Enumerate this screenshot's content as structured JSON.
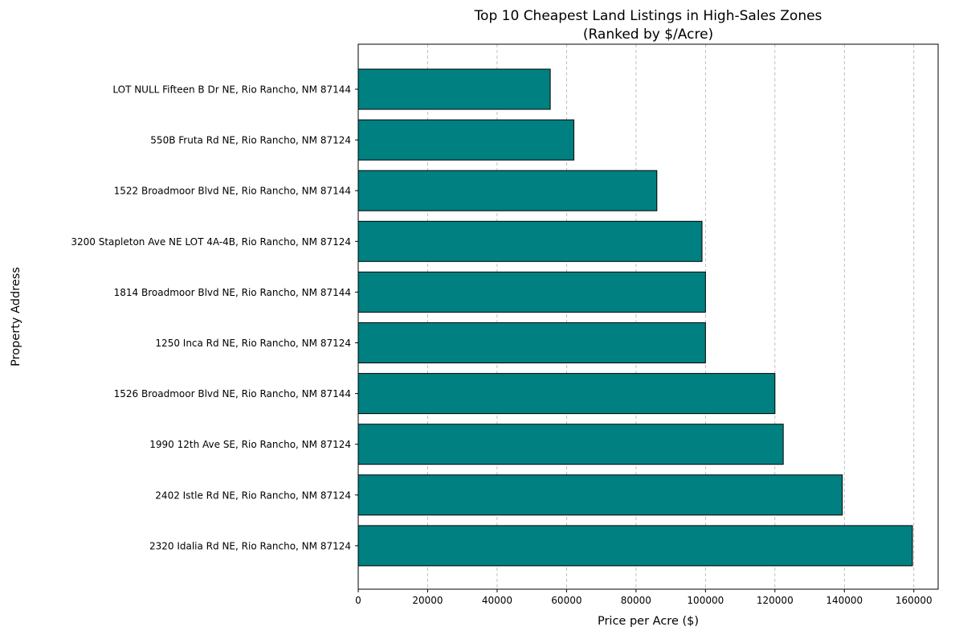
{
  "chart_data": {
    "type": "bar",
    "orientation": "horizontal",
    "title": "Top 10 Cheapest Land Listings in High-Sales Zones",
    "subtitle": "(Ranked by $/Acre)",
    "xlabel": "Price per Acre ($)",
    "ylabel": "Property Address",
    "xlim": [
      0,
      167000
    ],
    "xticks": [
      0,
      20000,
      40000,
      60000,
      80000,
      100000,
      120000,
      140000,
      160000
    ],
    "grid": "x-dashed",
    "bar_color": "#008080",
    "bar_edge_color": "#000000",
    "categories": [
      "LOT NULL Fifteen B Dr NE, Rio Rancho, NM 87144",
      "550B Fruta Rd NE, Rio Rancho, NM 87124",
      "1522 Broadmoor Blvd NE, Rio Rancho, NM 87144",
      "3200 Stapleton Ave NE LOT 4A-4B, Rio Rancho, NM 87124",
      "1814 Broadmoor Blvd NE, Rio Rancho, NM 87144",
      "1250 Inca Rd NE, Rio Rancho, NM 87124",
      "1526 Broadmoor Blvd NE, Rio Rancho, NM 87144",
      "1990 12th Ave SE, Rio Rancho, NM 87124",
      "2402 Istle Rd NE, Rio Rancho, NM 87124",
      "2320 Idalia Rd NE, Rio Rancho, NM 87124"
    ],
    "values": [
      55300,
      62100,
      86000,
      99000,
      100000,
      100000,
      120000,
      122400,
      139400,
      159600
    ]
  }
}
